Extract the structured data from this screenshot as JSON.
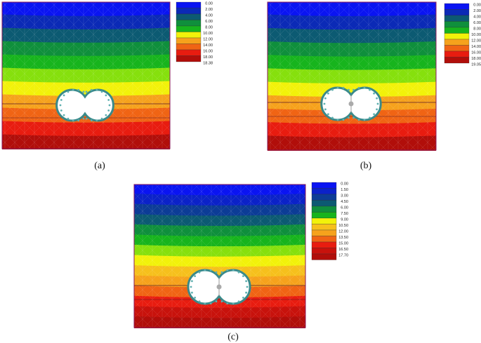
{
  "panels": [
    {
      "id": "a",
      "caption": "(a)",
      "bands": [
        "#0a14f2",
        "#0b2ab6",
        "#0c5a72",
        "#0f8f3c",
        "#17b41d",
        "#86e00d",
        "#f2f20a",
        "#f6a21c",
        "#f06414",
        "#e81c10",
        "#b10e0a"
      ],
      "legend": {
        "labels": [
          "0.00",
          "2.00",
          "4.00",
          "6.00",
          "8.00",
          "10.00",
          "12.00",
          "14.00",
          "16.00",
          "18.00",
          "18.38"
        ],
        "colors": [
          "#0a14f2",
          "#0b2ab6",
          "#0c5a72",
          "#0f8f3c",
          "#17b41d",
          "#f2f20a",
          "#f6a21c",
          "#f06414",
          "#e81c10",
          "#b10e0a"
        ]
      }
    },
    {
      "id": "b",
      "caption": "(b)",
      "bands": [
        "#0a14f2",
        "#0b2ab6",
        "#0c5a72",
        "#0f8f3c",
        "#17b41d",
        "#86e00d",
        "#f2f20a",
        "#f6a21c",
        "#f06414",
        "#e81c10",
        "#b10e0a"
      ],
      "legend": {
        "labels": [
          "0.00",
          "2.00",
          "4.00",
          "6.00",
          "8.00",
          "10.00",
          "12.00",
          "14.00",
          "16.00",
          "18.00",
          "19.05"
        ],
        "colors": [
          "#0a14f2",
          "#0b2ab6",
          "#0c5a72",
          "#0f8f3c",
          "#17b41d",
          "#f2f20a",
          "#f6a21c",
          "#f06414",
          "#e81c10",
          "#b10e0a"
        ]
      }
    },
    {
      "id": "c",
      "caption": "(c)",
      "bands": [
        "#0a14f2",
        "#0b22c8",
        "#0c3c96",
        "#0c5a72",
        "#0f8f3c",
        "#17b41d",
        "#86e00d",
        "#f2f20a",
        "#f6c01c",
        "#f6a21c",
        "#f06414",
        "#e81c10",
        "#c8120c",
        "#b10e0a"
      ],
      "legend": {
        "labels": [
          "0.00",
          "1.50",
          "3.00",
          "4.50",
          "6.00",
          "7.50",
          "9.00",
          "10.50",
          "12.00",
          "13.50",
          "15.00",
          "16.50",
          "17.70"
        ],
        "colors": [
          "#0a14f2",
          "#0b22c8",
          "#0c3c96",
          "#0c5a72",
          "#0f8f3c",
          "#17b41d",
          "#f2f20a",
          "#f6c01c",
          "#f6a21c",
          "#f06414",
          "#e81c10",
          "#c8120c",
          "#b10e0a"
        ]
      }
    }
  ]
}
